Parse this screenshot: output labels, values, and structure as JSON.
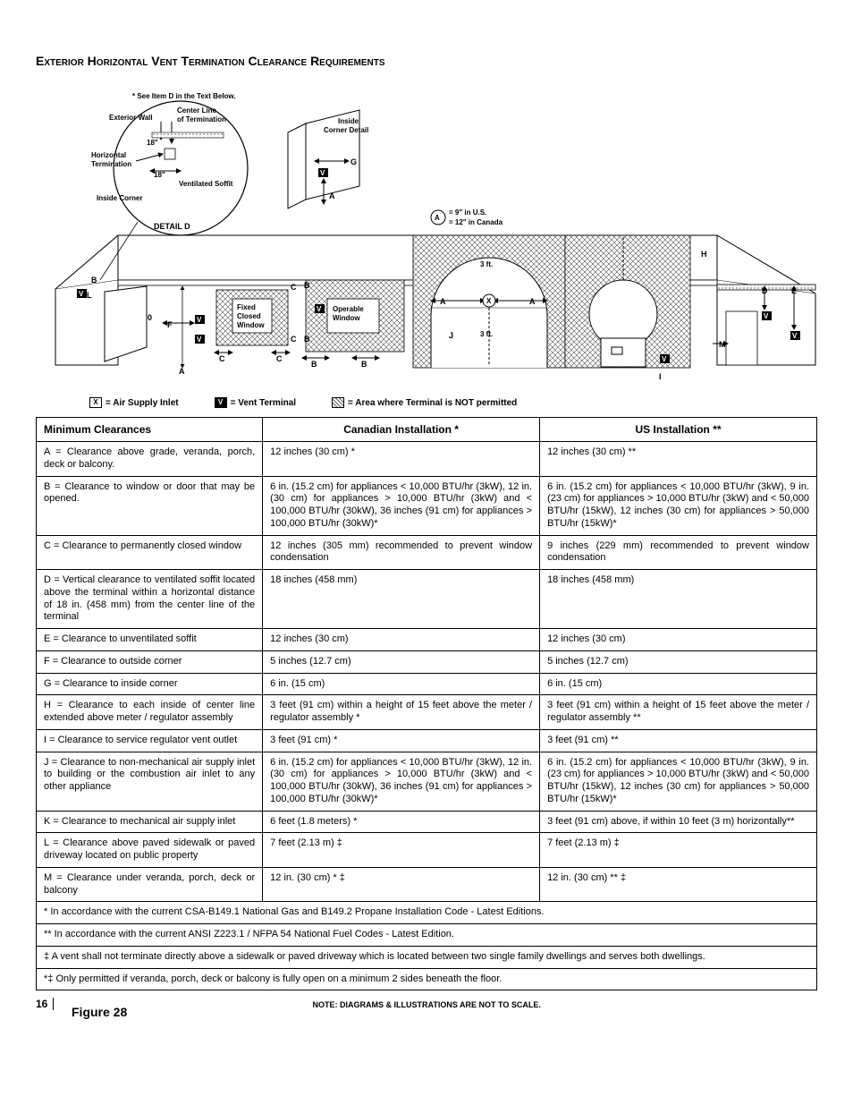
{
  "section_title": "Exterior Horizontal Vent Termination Clearance Requirements",
  "figure_caption": "Figure 28",
  "scale_note": "NOTE: DIAGRAMS & ILLUSTRATIONS ARE NOT TO SCALE.",
  "page_number": "16",
  "legend": {
    "x": "= Air Supply Inlet",
    "v": "= Vent Terminal",
    "hatch": "= Area where Terminal is NOT permitted"
  },
  "diagram": {
    "note_top": "* See Item D in the Text Below.",
    "exterior_wall": "Exterior Wall",
    "center_line": "Center Line\nof Termination",
    "horizontal_termination": "Horizontal\nTermination",
    "ventilated_soffit": "Ventilated Soffit",
    "inside_corner": "Inside Corner",
    "detail_d": "DETAIL D",
    "inside_corner_detail": "Inside\nCorner Detail",
    "dim18a": "18\"",
    "dim18b": "18\"",
    "a_note": "= 9\" in U.S.\n= 12\" in Canada",
    "fixed_closed_window": "Fixed\nClosed\nWindow",
    "operable_window": "Operable\nWindow",
    "three_ft_a": "3 ft.",
    "three_ft_b": "3 ft.",
    "labels": {
      "A": "A",
      "B": "B",
      "C": "C",
      "D": "D",
      "E": "E",
      "F": "F",
      "G": "G",
      "H": "H",
      "I": "I",
      "J": "J",
      "K": "K",
      "L": "L",
      "M": "M",
      "V": "V",
      "X": "X",
      "0": "0"
    }
  },
  "table": {
    "headers": [
      "Minimum Clearances",
      "Canadian Installation *",
      "US Installation **"
    ],
    "rows": [
      [
        "A = Clearance above grade, veranda, porch, deck or balcony.",
        "12 inches (30 cm) *",
        "12 inches (30 cm) **"
      ],
      [
        "B = Clearance to window or door that may be opened.",
        "6 in. (15.2 cm) for appliances < 10,000 BTU/hr (3kW), 12 in. (30 cm) for appliances > 10,000 BTU/hr (3kW) and < 100,000 BTU/hr (30kW), 36 inches (91 cm) for appliances > 100,000 BTU/hr (30kW)*",
        "6 in. (15.2 cm) for appliances < 10,000 BTU/hr (3kW), 9 in. (23 cm) for appliances > 10,000 BTU/hr (3kW) and < 50,000 BTU/hr (15kW), 12 inches (30 cm) for appliances > 50,000 BTU/hr (15kW)*"
      ],
      [
        "C = Clearance to permanently closed window",
        "12 inches (305 mm) recommended to prevent window condensation",
        "9 inches (229 mm) recommended to prevent window condensation"
      ],
      [
        "D = Vertical clearance to ventilated soffit located above the terminal within a horizontal distance of 18 in. (458 mm) from the center line of the terminal",
        "18 inches (458 mm)",
        "18 inches (458 mm)"
      ],
      [
        "E = Clearance to unventilated soffit",
        "12 inches (30 cm)",
        "12 inches (30 cm)"
      ],
      [
        "F = Clearance to outside corner",
        "5 inches (12.7 cm)",
        "5 inches (12.7 cm)"
      ],
      [
        "G = Clearance to inside corner",
        "6 in. (15 cm)",
        "6 in. (15 cm)"
      ],
      [
        "H = Clearance to each inside of center line extended above meter / regulator assembly",
        "3 feet (91 cm) within a height of 15 feet above the meter / regulator assembly *",
        "3 feet (91 cm) within a height of 15 feet above the meter / regulator assembly **"
      ],
      [
        "I = Clearance to service regulator vent outlet",
        "3 feet (91 cm) *",
        "3 feet (91 cm) **"
      ],
      [
        "J = Clearance to non-mechanical air supply inlet to building or the combustion air inlet to any other appliance",
        "6 in. (15.2 cm) for appliances < 10,000 BTU/hr (3kW), 12 in. (30 cm) for appliances > 10,000 BTU/hr (3kW) and < 100,000 BTU/hr (30kW), 36 inches (91 cm) for appliances > 100,000 BTU/hr (30kW)*",
        "6 in. (15.2 cm) for appliances < 10,000 BTU/hr (3kW), 9 in. (23 cm) for appliances > 10,000 BTU/hr (3kW) and < 50,000 BTU/hr (15kW), 12 inches (30 cm) for appliances > 50,000 BTU/hr (15kW)*"
      ],
      [
        "K = Clearance to mechanical air supply inlet",
        "6 feet (1.8 meters) *",
        "3 feet (91 cm) above, if within 10 feet (3 m) horizontally**"
      ],
      [
        "L = Clearance above paved sidewalk or paved driveway located on public property",
        "7 feet (2.13 m) ‡",
        "7 feet (2.13 m) ‡"
      ],
      [
        "M = Clearance under veranda, porch, deck or balcony",
        "12 in. (30 cm) * ‡",
        "12 in. (30 cm) ** ‡"
      ]
    ],
    "notes": [
      "* In accordance with the current CSA-B149.1 National Gas and B149.2 Propane Installation Code - Latest Editions.",
      "** In accordance with the current ANSI Z223.1 / NFPA 54 National Fuel Codes - Latest Edition.",
      "‡ A vent shall not terminate directly above a sidewalk or paved driveway which is located between two single family dwellings and serves both dwellings.",
      "*‡ Only permitted if veranda, porch, deck or balcony is fully open on a minimum 2 sides beneath the floor."
    ]
  }
}
